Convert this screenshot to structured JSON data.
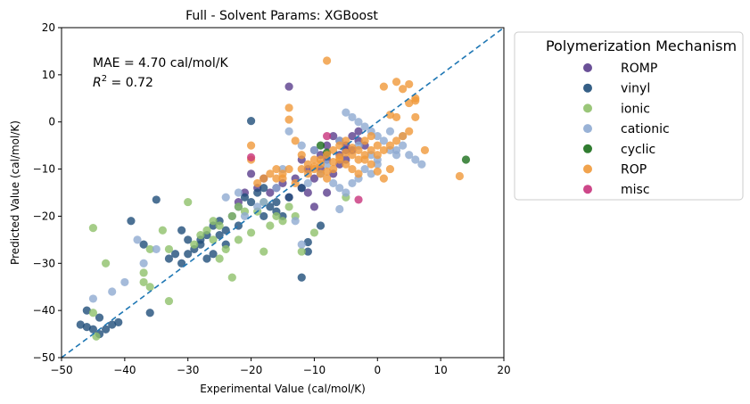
{
  "chart_data": {
    "type": "scatter",
    "title": "Full - Solvent Params: XGBoost",
    "xlabel": "Experimental Value (cal/mol/K)",
    "ylabel": "Predicted Value (cal/mol/K)",
    "xlim": [
      -50,
      20
    ],
    "ylim": [
      -50,
      20
    ],
    "xticks": [
      -50,
      -40,
      -30,
      -20,
      -10,
      0,
      10,
      20
    ],
    "yticks": [
      -50,
      -40,
      -30,
      -20,
      -10,
      0,
      10,
      20
    ],
    "annotation": {
      "mae": "MAE = 4.70 cal/mol/K",
      "r2_prefix": "R",
      "r2_sup": "2",
      "r2_suffix": " = 0.72"
    },
    "reference_line": {
      "from": [
        -50,
        -50
      ],
      "to": [
        20,
        20
      ],
      "style": "dashed",
      "color": "#1f77b4"
    },
    "legend": {
      "title": "Polymerization Mechanism",
      "position": "outside-right"
    },
    "grid": false,
    "series": [
      {
        "name": "ROMP",
        "color": "#5a3d8c",
        "points": [
          [
            -14,
            7.5
          ],
          [
            -8,
            -5
          ],
          [
            -7,
            -3
          ],
          [
            -6,
            -4
          ],
          [
            -5,
            -6
          ],
          [
            -4,
            -3
          ],
          [
            -3,
            -4
          ],
          [
            -2,
            -5
          ],
          [
            -9,
            -7
          ],
          [
            -10,
            -6
          ],
          [
            -8,
            -8
          ],
          [
            -7,
            -11
          ],
          [
            -6,
            -9
          ],
          [
            -5,
            -5
          ],
          [
            -4,
            -6
          ],
          [
            -3,
            -2
          ],
          [
            -12,
            -8
          ],
          [
            -11,
            -10
          ],
          [
            -13,
            -12
          ],
          [
            -15,
            -13
          ],
          [
            -16,
            -14
          ],
          [
            -17,
            -15
          ],
          [
            -18,
            -12
          ],
          [
            -19,
            -14
          ],
          [
            -20,
            -11
          ],
          [
            -21,
            -15
          ],
          [
            -22,
            -17
          ],
          [
            -14,
            -16
          ],
          [
            -12,
            -14
          ],
          [
            -10,
            -18
          ],
          [
            -8,
            -15
          ],
          [
            -6,
            -7
          ],
          [
            -5,
            -8
          ],
          [
            -10,
            -12
          ],
          [
            -9,
            -10
          ],
          [
            -11,
            -15
          ]
        ]
      },
      {
        "name": "vinyl",
        "color": "#1f4e79",
        "points": [
          [
            -47,
            -43
          ],
          [
            -46,
            -43.5
          ],
          [
            -45,
            -44
          ],
          [
            -44,
            -45
          ],
          [
            -43,
            -44
          ],
          [
            -42,
            -43
          ],
          [
            -41,
            -42.5
          ],
          [
            -46,
            -40
          ],
          [
            -44,
            -41.5
          ],
          [
            -36,
            -40.5
          ],
          [
            -35,
            -16.5
          ],
          [
            -39,
            -21
          ],
          [
            -37,
            -26
          ],
          [
            -32,
            -28
          ],
          [
            -31,
            -23
          ],
          [
            -30,
            -25
          ],
          [
            -29,
            -27
          ],
          [
            -28,
            -26
          ],
          [
            -27,
            -24
          ],
          [
            -26,
            -22
          ],
          [
            -25,
            -21
          ],
          [
            -24,
            -23
          ],
          [
            -23,
            -20
          ],
          [
            -22,
            -18
          ],
          [
            -21,
            -16
          ],
          [
            -20,
            -17
          ],
          [
            -19,
            -15
          ],
          [
            -18,
            -14
          ],
          [
            -17,
            -18
          ],
          [
            -16,
            -19
          ],
          [
            -15,
            -20
          ],
          [
            -20,
            0.2
          ],
          [
            -12,
            -33
          ],
          [
            -11,
            -25.5
          ],
          [
            -11,
            -27.5
          ],
          [
            -9,
            -22
          ],
          [
            -33,
            -29
          ],
          [
            -31,
            -30
          ],
          [
            -30,
            -28
          ],
          [
            -28,
            -25
          ],
          [
            -27,
            -29
          ],
          [
            -26,
            -28
          ],
          [
            -25,
            -24
          ],
          [
            -24,
            -26
          ],
          [
            -22,
            -22
          ],
          [
            -18,
            -20
          ],
          [
            -16,
            -17
          ],
          [
            -14,
            -16
          ],
          [
            -12,
            -14
          ]
        ]
      },
      {
        "name": "ionic",
        "color": "#8fc06a",
        "points": [
          [
            -45,
            -22.5
          ],
          [
            -43,
            -30
          ],
          [
            -45,
            -40.5
          ],
          [
            -44.5,
            -45.5
          ],
          [
            -37,
            -32
          ],
          [
            -36,
            -27
          ],
          [
            -33,
            -38
          ],
          [
            -33,
            -27
          ],
          [
            -30,
            -17
          ],
          [
            -28,
            -24
          ],
          [
            -27,
            -23
          ],
          [
            -26,
            -21
          ],
          [
            -25,
            -22
          ],
          [
            -23,
            -20
          ],
          [
            -22,
            -18
          ],
          [
            -21,
            -19
          ],
          [
            -20,
            -23.5
          ],
          [
            -19,
            -19
          ],
          [
            -18,
            -27.5
          ],
          [
            -17,
            -22
          ],
          [
            -16,
            -20
          ],
          [
            -15,
            -21
          ],
          [
            -14,
            -18
          ],
          [
            -13,
            -20
          ],
          [
            -12,
            -27.5
          ],
          [
            -10,
            -23.5
          ],
          [
            -23,
            -33
          ],
          [
            -24,
            -27
          ],
          [
            -25,
            -29
          ],
          [
            -29,
            -26
          ],
          [
            -34,
            -23
          ],
          [
            -36,
            -35
          ],
          [
            -37,
            -34
          ],
          [
            -5,
            -16
          ],
          [
            -26,
            -25
          ],
          [
            -22,
            -25
          ],
          [
            -18,
            -17
          ]
        ]
      },
      {
        "name": "cationic",
        "color": "#8eaad1",
        "points": [
          [
            -45,
            -37.5
          ],
          [
            -42,
            -36
          ],
          [
            -40,
            -34
          ],
          [
            -38,
            -25
          ],
          [
            -37,
            -30
          ],
          [
            -35,
            -27
          ],
          [
            -6,
            -18.5
          ],
          [
            -5,
            2
          ],
          [
            -4,
            1
          ],
          [
            -3,
            0
          ],
          [
            -2,
            -1
          ],
          [
            -1,
            -2
          ],
          [
            0,
            -3
          ],
          [
            1,
            -4
          ],
          [
            2,
            -6
          ],
          [
            -1,
            -7
          ],
          [
            0,
            -8
          ],
          [
            3,
            -6
          ],
          [
            4,
            -5
          ],
          [
            5,
            -7
          ],
          [
            6,
            -8
          ],
          [
            7,
            -9
          ],
          [
            3,
            -7
          ],
          [
            -14,
            -2
          ],
          [
            -12,
            -5
          ],
          [
            -10,
            -6
          ],
          [
            -8,
            -9
          ],
          [
            -7,
            -13
          ],
          [
            -6,
            -14
          ],
          [
            -5,
            -15
          ],
          [
            -4,
            -13
          ],
          [
            -3,
            -12
          ],
          [
            -2,
            -10
          ],
          [
            -1,
            -11
          ],
          [
            0,
            -9
          ],
          [
            -9,
            -11
          ],
          [
            -11,
            -13
          ],
          [
            -15,
            -10
          ],
          [
            -16,
            -14
          ],
          [
            -18,
            -17
          ],
          [
            -19,
            -18
          ],
          [
            -21,
            -20
          ],
          [
            -22,
            -15
          ],
          [
            -24,
            -16
          ],
          [
            -12,
            -26
          ],
          [
            -13,
            -21
          ],
          [
            -6,
            -4
          ],
          [
            -3,
            -5
          ],
          [
            2,
            -2
          ],
          [
            4,
            -3
          ]
        ]
      },
      {
        "name": "cyclic",
        "color": "#1a6e1a",
        "points": [
          [
            14,
            -8
          ],
          [
            -9,
            -5
          ],
          [
            -8,
            -6.5
          ]
        ]
      },
      {
        "name": "ROP",
        "color": "#f0993a",
        "points": [
          [
            -8,
            13
          ],
          [
            -14,
            3
          ],
          [
            -14,
            0.5
          ],
          [
            -13,
            -4
          ],
          [
            -12,
            -7
          ],
          [
            -11,
            -9
          ],
          [
            -10,
            -10
          ],
          [
            -9,
            -11
          ],
          [
            -8,
            -12
          ],
          [
            -7,
            -10
          ],
          [
            -6,
            -8
          ],
          [
            -5,
            -9
          ],
          [
            -4,
            -7
          ],
          [
            -3,
            -6
          ],
          [
            -2,
            -8
          ],
          [
            -1,
            -9
          ],
          [
            0,
            -7
          ],
          [
            1,
            -6
          ],
          [
            2,
            -5
          ],
          [
            3,
            -4
          ],
          [
            4,
            -3
          ],
          [
            5,
            -2
          ],
          [
            6,
            1
          ],
          [
            5,
            4
          ],
          [
            6,
            5
          ],
          [
            4,
            7
          ],
          [
            3,
            8.5
          ],
          [
            5,
            8
          ],
          [
            6,
            4.5
          ],
          [
            1,
            7.5
          ],
          [
            2,
            1.5
          ],
          [
            3,
            1
          ],
          [
            -15,
            -12
          ],
          [
            -16,
            -10
          ],
          [
            -17,
            -11
          ],
          [
            -18,
            -12
          ],
          [
            -19,
            -13
          ],
          [
            -20,
            -5
          ],
          [
            -20,
            -8
          ],
          [
            -12,
            -10
          ],
          [
            -11,
            -11
          ],
          [
            -10,
            -8
          ],
          [
            -9,
            -9
          ],
          [
            -8,
            -7
          ],
          [
            -7,
            -6
          ],
          [
            -6,
            -5
          ],
          [
            -5,
            -4
          ],
          [
            -4,
            -10
          ],
          [
            -3,
            -11
          ],
          [
            -2,
            -4
          ],
          [
            -1,
            -3
          ],
          [
            0,
            -5
          ],
          [
            2,
            -10
          ],
          [
            7.5,
            -6
          ],
          [
            13,
            -11.5
          ],
          [
            -13,
            -13
          ],
          [
            -14,
            -10
          ],
          [
            -15,
            -11
          ],
          [
            -16,
            -12
          ],
          [
            -10,
            -9.5
          ],
          [
            -9,
            -8
          ],
          [
            -8,
            -10.5
          ],
          [
            -7,
            -8.5
          ],
          [
            -6,
            -7.5
          ],
          [
            -5,
            -6.5
          ],
          [
            -4,
            -5.5
          ],
          [
            -3,
            -8
          ],
          [
            -2,
            -7
          ],
          [
            -1,
            -6
          ],
          [
            0,
            -10.5
          ],
          [
            1,
            -12
          ]
        ]
      },
      {
        "name": "misc",
        "color": "#c8337c",
        "points": [
          [
            -20,
            -7.5
          ],
          [
            -8,
            -3
          ],
          [
            -3,
            -16.5
          ]
        ]
      }
    ]
  }
}
